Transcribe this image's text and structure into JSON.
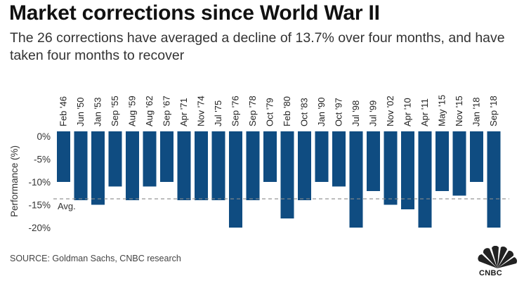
{
  "title": "Market corrections since World War II",
  "subtitle": "The 26 corrections have averaged a decline of 13.7% over four months, and have taken four months to recover",
  "source": "SOURCE: Goldman Sachs, CNBC research",
  "logo_text": "CNBC",
  "chart_data": {
    "type": "bar",
    "ylabel": "Performance (%)",
    "ylim": [
      -21,
      1
    ],
    "yticks": [
      0,
      -5,
      -10,
      -15,
      -20
    ],
    "ytick_labels": [
      "0%",
      "-5%",
      "-10%",
      "-15%",
      "-20%"
    ],
    "categories": [
      "Feb '46",
      "Jun '50",
      "Jan '53",
      "Sep '55",
      "Aug '59",
      "Aug '62",
      "Sep '67",
      "Apr '71",
      "Nov '74",
      "Jul '75",
      "Sep '76",
      "Sep '78",
      "Oct '79",
      "Feb '80",
      "Oct '83",
      "Jan '90",
      "Oct '97",
      "Jul '98",
      "Jul '99",
      "Nov '02",
      "Apr '10",
      "Apr '11",
      "May '15",
      "Nov '15",
      "Jan '18",
      "Sep '18"
    ],
    "values": [
      -10,
      -14,
      -15,
      -11,
      -14,
      -11,
      -10,
      -14,
      -14,
      -14,
      -20,
      -14,
      -10,
      -18,
      -14,
      -10,
      -11,
      -20,
      -12,
      -15,
      -16,
      -20,
      -12,
      -13,
      -10,
      -20
    ],
    "average": -13.7,
    "average_label": "Avg.",
    "bar_color": "#0f4c81",
    "category_labels_position": "top",
    "grid": false
  }
}
